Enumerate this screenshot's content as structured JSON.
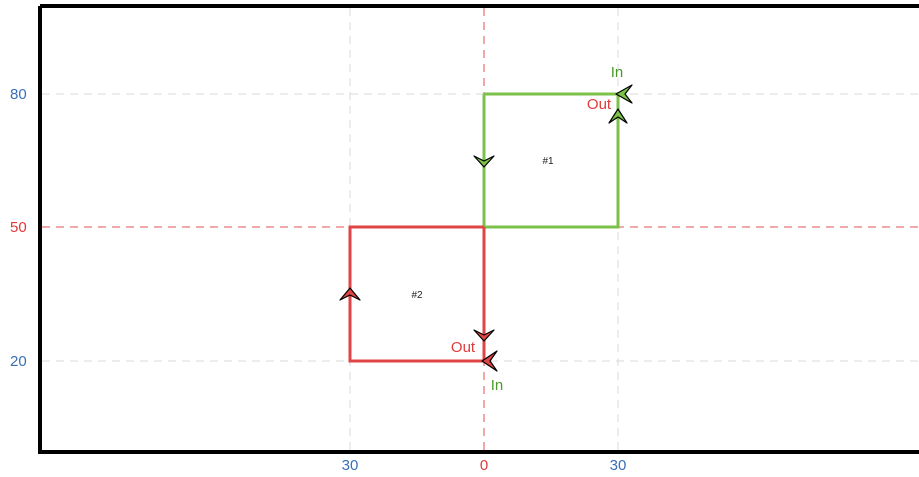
{
  "colors": {
    "frame": "#000000",
    "grid": "#d9d9d9",
    "axis_origin": "#e05050",
    "tick_label_blue": "#3a6fb5",
    "tick_label_red": "#e03a3a",
    "green_path": "#7cc24a",
    "green_label": "#4a9a2a",
    "red_path": "#e04545",
    "red_label": "#e03a3a",
    "arrow_green_fill": "#7cc24a",
    "arrow_red_fill": "#e04545",
    "arrow_outline": "#000000"
  },
  "axes": {
    "x_ticks": [
      {
        "label": "30",
        "value": -30,
        "color": "blue"
      },
      {
        "label": "0",
        "value": 0,
        "color": "red"
      },
      {
        "label": "30",
        "value": 30,
        "color": "blue"
      }
    ],
    "y_ticks": [
      {
        "label": "80",
        "value": 80,
        "color": "blue"
      },
      {
        "label": "50",
        "value": 50,
        "color": "red"
      },
      {
        "label": "20",
        "value": 20,
        "color": "blue"
      }
    ]
  },
  "paths": {
    "path1": {
      "label": "#1",
      "in_label": "In",
      "out_label": "Out",
      "corners": [
        [
          0,
          80
        ],
        [
          30,
          80
        ],
        [
          30,
          50
        ],
        [
          0,
          50
        ]
      ]
    },
    "path2": {
      "label": "#2",
      "in_label": "In",
      "out_label": "Out",
      "corners": [
        [
          -30,
          50
        ],
        [
          0,
          50
        ],
        [
          0,
          20
        ],
        [
          -30,
          20
        ]
      ]
    }
  }
}
